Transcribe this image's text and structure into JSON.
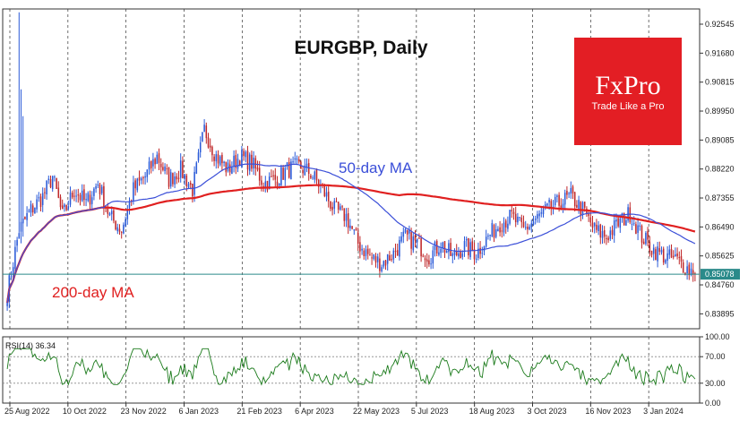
{
  "chart_data": [
    {
      "type": "candlestick",
      "title": "EURGBP, Daily",
      "ylim": [
        0.8345,
        0.93
      ],
      "y_ticks": [
        "0.92545",
        "0.91680",
        "0.90815",
        "0.89950",
        "0.89085",
        "0.88220",
        "0.87355",
        "0.86490",
        "0.85625",
        "0.84760",
        "0.83895"
      ],
      "x_ticks": [
        "25 Aug 2022",
        "10 Oct 2022",
        "23 Nov 2022",
        "6 Jan 2023",
        "21 Feb 2023",
        "6 Apr 2023",
        "22 May 2023",
        "5 Jul 2023",
        "18 Aug 2023",
        "3 Oct 2023",
        "16 Nov 2023",
        "3 Jan 2024"
      ],
      "current_price": "0.85078",
      "current_price_value": 0.85078,
      "series": [
        {
          "name": "50-day MA",
          "color": "#3b4fd8"
        },
        {
          "name": "200-day MA",
          "color": "#e02020"
        }
      ],
      "close_anchors": [
        [
          0,
          0.845
        ],
        [
          6,
          0.864
        ],
        [
          12,
          0.87
        ],
        [
          18,
          0.874
        ],
        [
          23,
          0.88
        ],
        [
          28,
          0.868
        ],
        [
          34,
          0.876
        ],
        [
          40,
          0.872
        ],
        [
          46,
          0.878
        ],
        [
          52,
          0.868
        ],
        [
          58,
          0.864
        ],
        [
          64,
          0.876
        ],
        [
          70,
          0.88
        ],
        [
          76,
          0.886
        ],
        [
          82,
          0.879
        ],
        [
          88,
          0.882
        ],
        [
          94,
          0.876
        ],
        [
          100,
          0.894
        ],
        [
          106,
          0.886
        ],
        [
          112,
          0.882
        ],
        [
          118,
          0.886
        ],
        [
          124,
          0.884
        ],
        [
          130,
          0.878
        ],
        [
          136,
          0.879
        ],
        [
          142,
          0.882
        ],
        [
          148,
          0.883
        ],
        [
          154,
          0.881
        ],
        [
          160,
          0.876
        ],
        [
          166,
          0.87
        ],
        [
          172,
          0.868
        ],
        [
          178,
          0.86
        ],
        [
          184,
          0.856
        ],
        [
          190,
          0.854
        ],
        [
          196,
          0.857
        ],
        [
          202,
          0.862
        ],
        [
          208,
          0.86
        ],
        [
          214,
          0.856
        ],
        [
          220,
          0.86
        ],
        [
          226,
          0.856
        ],
        [
          232,
          0.859
        ],
        [
          238,
          0.857
        ],
        [
          244,
          0.862
        ],
        [
          250,
          0.866
        ],
        [
          256,
          0.868
        ],
        [
          262,
          0.864
        ],
        [
          268,
          0.867
        ],
        [
          274,
          0.87
        ],
        [
          280,
          0.872
        ],
        [
          286,
          0.874
        ],
        [
          292,
          0.87
        ],
        [
          298,
          0.864
        ],
        [
          304,
          0.862
        ],
        [
          310,
          0.866
        ],
        [
          316,
          0.869
        ],
        [
          322,
          0.862
        ],
        [
          328,
          0.858
        ],
        [
          334,
          0.856
        ],
        [
          340,
          0.855
        ],
        [
          346,
          0.852
        ]
      ],
      "spikes": [
        [
          6,
          0.929,
          0.862
        ],
        [
          7,
          0.906,
          0.86
        ],
        [
          8,
          0.898,
          0.862
        ]
      ]
    },
    {
      "type": "line",
      "title": "RSI(14) 36.34",
      "ylim": [
        0,
        100
      ],
      "y_ticks": [
        "100.00",
        "70.00",
        "30.00",
        "0.00"
      ],
      "levels": [
        70,
        30
      ],
      "series": [
        {
          "name": "RSI(14)",
          "color": "#1a7a1a"
        }
      ]
    }
  ],
  "annotations": {
    "ma50_label": "50-day MA",
    "ma200_label": "200-day MA",
    "ma50_color": "#3b4fd8",
    "ma200_color": "#e02020"
  },
  "logo": {
    "text": "FxPro",
    "subtitle": "Trade Like a Pro",
    "color": "#e31e24"
  },
  "colors": {
    "bull": "#2a5ad8",
    "bear": "#c0282a",
    "price_line": "#2a8a8a",
    "grid": "#333333"
  }
}
